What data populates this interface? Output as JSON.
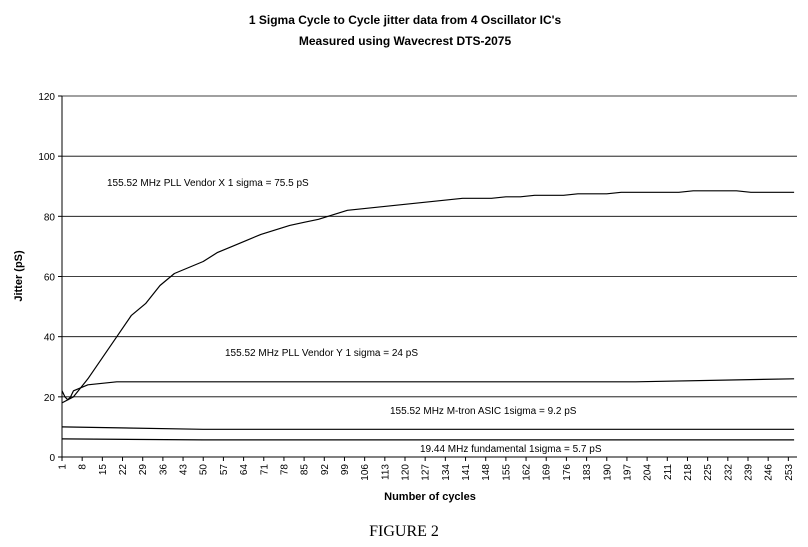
{
  "chart_data": {
    "type": "line",
    "title_line1": "1 Sigma Cycle to Cycle jitter data from 4 Oscillator IC's",
    "title_line2": "Measured using Wavecrest DTS-2075",
    "xlabel": "Number of cycles",
    "ylabel": "Jitter (pS)",
    "caption": "FIGURE 2",
    "ylim": [
      0,
      120
    ],
    "yticks": [
      0,
      20,
      40,
      60,
      80,
      100,
      120
    ],
    "xlim": [
      1,
      256
    ],
    "xticks": [
      1,
      8,
      15,
      22,
      29,
      36,
      43,
      50,
      57,
      64,
      71,
      78,
      85,
      92,
      99,
      106,
      113,
      120,
      127,
      134,
      141,
      148,
      155,
      162,
      169,
      176,
      183,
      190,
      197,
      204,
      211,
      218,
      225,
      232,
      239,
      246,
      253
    ],
    "grid": "horizontal",
    "colors": {
      "line": "#000000",
      "grid": "#000000",
      "background": "#ffffff"
    },
    "series": [
      {
        "label": "155.52 MHz PLL Vendor X 1 sigma = 75.5 pS",
        "x": [
          1,
          5,
          10,
          15,
          20,
          25,
          30,
          35,
          40,
          45,
          50,
          55,
          60,
          65,
          70,
          75,
          80,
          85,
          90,
          95,
          100,
          105,
          110,
          115,
          120,
          125,
          130,
          135,
          140,
          145,
          150,
          155,
          160,
          165,
          170,
          175,
          180,
          185,
          190,
          195,
          200,
          205,
          210,
          215,
          220,
          225,
          230,
          235,
          240,
          245,
          250,
          255
        ],
        "y": [
          18,
          20,
          26,
          33,
          40,
          47,
          51,
          57,
          61,
          63,
          65,
          68,
          70,
          72,
          74,
          75.5,
          77,
          78,
          79,
          80.5,
          82,
          82.5,
          83,
          83.5,
          84,
          84.5,
          85,
          85.5,
          86,
          86,
          86,
          86.5,
          86.5,
          87,
          87,
          87,
          87.5,
          87.5,
          87.5,
          88,
          88,
          88,
          88,
          88,
          88.5,
          88.5,
          88.5,
          88.5,
          88,
          88,
          88,
          88
        ]
      },
      {
        "label": "155.52 MHz PLL Vendor Y 1 sigma = 24 pS",
        "x": [
          1,
          2,
          3,
          4,
          5,
          10,
          20,
          50,
          100,
          150,
          200,
          255
        ],
        "y": [
          22,
          20,
          19,
          20,
          22,
          24,
          25,
          25,
          25,
          25,
          25,
          26
        ]
      },
      {
        "label": "155.52 MHz M-tron ASIC 1sigma = 9.2 pS",
        "x": [
          1,
          50,
          100,
          150,
          200,
          255
        ],
        "y": [
          10,
          9.2,
          9.2,
          9.2,
          9.2,
          9.2
        ]
      },
      {
        "label": "19.44 MHz fundamental 1sigma = 5.7 pS",
        "x": [
          1,
          50,
          100,
          150,
          200,
          255
        ],
        "y": [
          6,
          5.7,
          5.7,
          5.7,
          5.7,
          5.7
        ]
      }
    ]
  }
}
